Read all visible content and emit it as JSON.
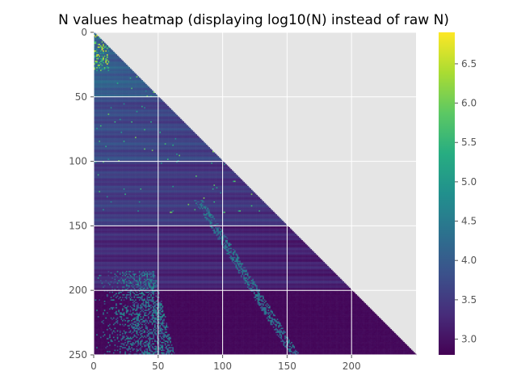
{
  "chart_data": {
    "type": "heatmap",
    "title": "N values heatmap (displaying log10(N) instead of raw N)",
    "xlabel": "",
    "ylabel": "",
    "shape": [
      250,
      250
    ],
    "mask": "upper-triangle (col > row) not displayed",
    "xlim": [
      0,
      250
    ],
    "ylim": [
      250,
      0
    ],
    "x_ticks": [
      0,
      50,
      100,
      150,
      200
    ],
    "y_ticks": [
      0,
      50,
      100,
      150,
      200,
      250
    ],
    "grid": true,
    "colormap": "viridis",
    "color_range": [
      2.8,
      6.9
    ],
    "colorbar_ticks": [
      "3.0",
      "3.5",
      "4.0",
      "4.5",
      "5.0",
      "5.5",
      "6.0",
      "6.5"
    ],
    "colorbar_tick_values": [
      3.0,
      3.5,
      4.0,
      4.5,
      5.0,
      5.5,
      6.0,
      6.5
    ],
    "background_color": "#e5e5e5",
    "description_values": {
      "low_value": 2.85,
      "band_values_by_row": [
        {
          "rows": [
            0,
            50
          ],
          "value": 4.1
        },
        {
          "rows": [
            50,
            100
          ],
          "value": 3.75
        },
        {
          "rows": [
            100,
            150
          ],
          "value": 3.55
        },
        {
          "rows": [
            150,
            200
          ],
          "value": 3.3
        },
        {
          "rows": [
            200,
            250
          ],
          "value": 2.9
        }
      ],
      "diagonal_streak_peak": 4.8,
      "corner_peak": 6.9
    }
  }
}
